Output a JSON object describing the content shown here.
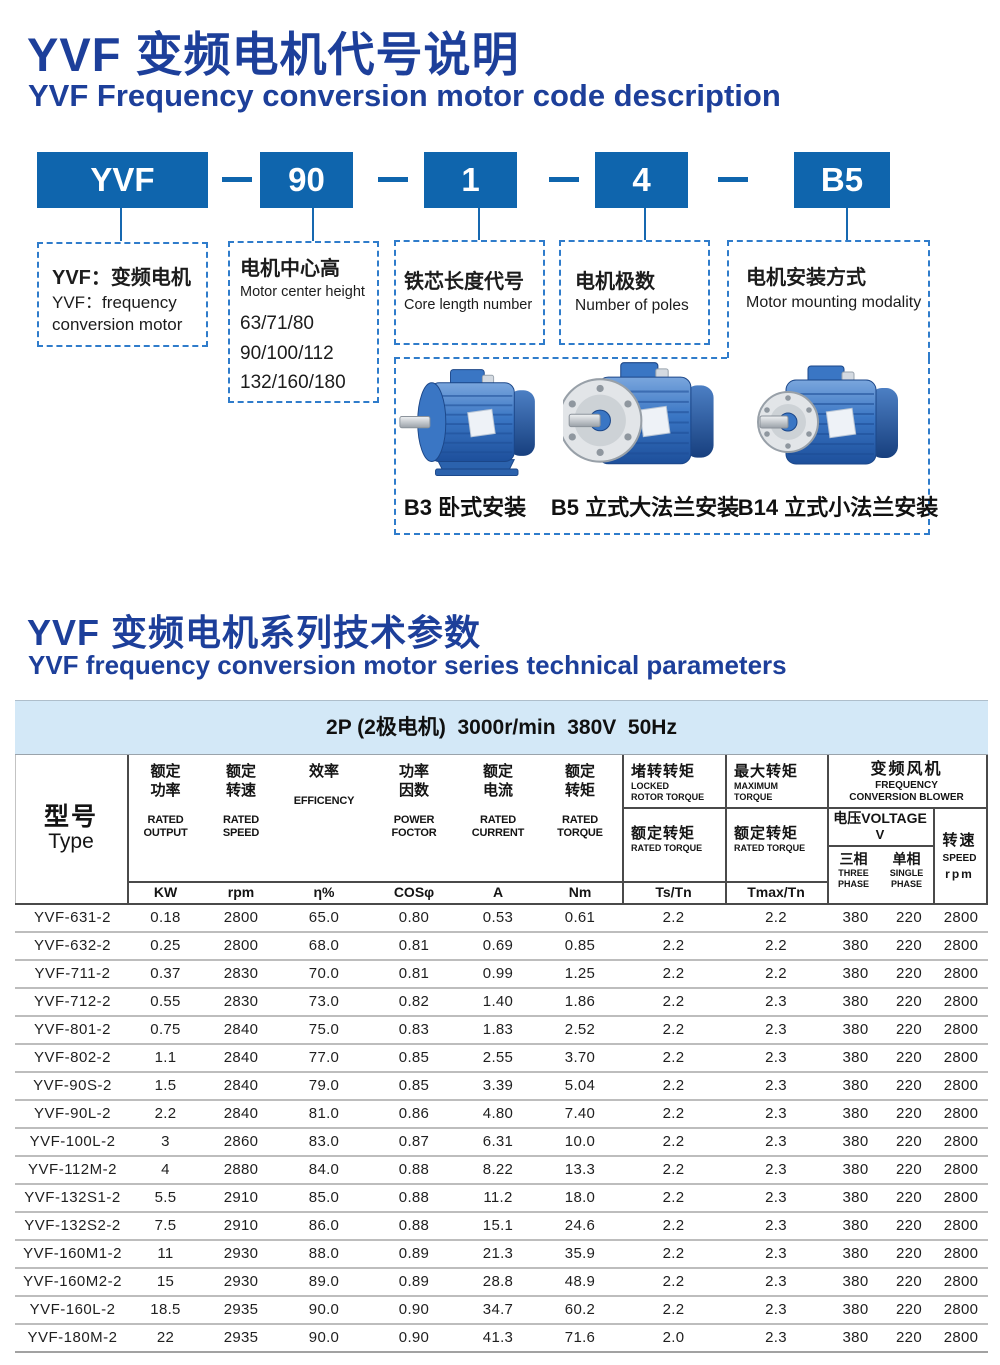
{
  "page": {
    "title_cn": "YVF 变频电机代号说明",
    "title_en": "YVF Frequency conversion motor code description"
  },
  "code_diagram": {
    "boxes": [
      {
        "label": "YVF"
      },
      {
        "label": "90"
      },
      {
        "label": "1"
      },
      {
        "label": "4"
      },
      {
        "label": "B5"
      }
    ],
    "descriptions": [
      {
        "cn": "YVF：变频电机",
        "en_lines": [
          "YVF：frequency",
          "conversion motor"
        ]
      },
      {
        "cn": "电机中心高",
        "en": "Motor center height",
        "values": [
          "63/71/80",
          "90/100/112",
          "132/160/180"
        ]
      },
      {
        "cn": "铁芯长度代号",
        "en": "Core length number"
      },
      {
        "cn": "电机极数",
        "en": "Number of poles"
      },
      {
        "cn": "电机安装方式",
        "en": "Motor mounting modality"
      }
    ],
    "mountings": [
      {
        "label": "B3 卧式安装"
      },
      {
        "label": "B5 立式大法兰安装"
      },
      {
        "label": "B14 立式小法兰安装"
      }
    ]
  },
  "section": {
    "title_cn": "YVF 变频电机系列技术参数",
    "title_en": "YVF frequency conversion motor series technical parameters"
  },
  "table": {
    "banner": "2P (2极电机)  3000r/min  380V  50Hz",
    "header": {
      "type_cn": "型号",
      "type_en": "Type",
      "cols": [
        {
          "cn": [
            "额定",
            "功率"
          ],
          "en": [
            "RATED",
            "OUTPUT"
          ],
          "unit": "KW"
        },
        {
          "cn": [
            "额定",
            "转速"
          ],
          "en": [
            "RATED",
            "SPEED"
          ],
          "unit": "rpm"
        },
        {
          "cn": [
            "效率"
          ],
          "en": [
            "EFFICENCY"
          ],
          "unit": "η%"
        },
        {
          "cn": [
            "功率",
            "因数"
          ],
          "en": [
            "POWER",
            "FOCTOR"
          ],
          "unit": "COSφ"
        },
        {
          "cn": [
            "额定",
            "电流"
          ],
          "en": [
            "RATED",
            "CURRENT"
          ],
          "unit": "A"
        },
        {
          "cn": [
            "额定",
            "转矩"
          ],
          "en": [
            "RATED",
            "TORQUE"
          ],
          "unit": "Nm"
        }
      ],
      "locked": {
        "cn": "堵转转矩",
        "en": [
          "LOCKED",
          "ROTOR TORQUE"
        ],
        "sub_cn": "额定转矩",
        "sub_en": "RATED TORQUE",
        "unit": "Ts/Tn"
      },
      "max": {
        "cn": "最大转矩",
        "en": [
          "MAXIMUM",
          "TORQUE"
        ],
        "sub_cn": "额定转矩",
        "sub_en": "RATED TORQUE",
        "unit": "Tmax/Tn"
      },
      "blower": {
        "cn": "变频风机",
        "en": [
          "FREQUENCY",
          "CONVERSION BLOWER"
        ],
        "voltage": "电压VOLTAGE",
        "voltage_unit": "V",
        "three": [
          "三相",
          "THREE",
          "PHASE"
        ],
        "single": [
          "单相",
          "SINGLE",
          "PHASE"
        ],
        "speed": [
          "转速",
          "SPEED",
          "rpm"
        ]
      }
    },
    "rows": [
      [
        "YVF-631-2",
        "0.18",
        "2800",
        "65.0",
        "0.80",
        "0.53",
        "0.61",
        "2.2",
        "2.2",
        "380",
        "220",
        "2800"
      ],
      [
        "YVF-632-2",
        "0.25",
        "2800",
        "68.0",
        "0.81",
        "0.69",
        "0.85",
        "2.2",
        "2.2",
        "380",
        "220",
        "2800"
      ],
      [
        "YVF-711-2",
        "0.37",
        "2830",
        "70.0",
        "0.81",
        "0.99",
        "1.25",
        "2.2",
        "2.2",
        "380",
        "220",
        "2800"
      ],
      [
        "YVF-712-2",
        "0.55",
        "2830",
        "73.0",
        "0.82",
        "1.40",
        "1.86",
        "2.2",
        "2.3",
        "380",
        "220",
        "2800"
      ],
      [
        "YVF-801-2",
        "0.75",
        "2840",
        "75.0",
        "0.83",
        "1.83",
        "2.52",
        "2.2",
        "2.3",
        "380",
        "220",
        "2800"
      ],
      [
        "YVF-802-2",
        "1.1",
        "2840",
        "77.0",
        "0.85",
        "2.55",
        "3.70",
        "2.2",
        "2.3",
        "380",
        "220",
        "2800"
      ],
      [
        "YVF-90S-2",
        "1.5",
        "2840",
        "79.0",
        "0.85",
        "3.39",
        "5.04",
        "2.2",
        "2.3",
        "380",
        "220",
        "2800"
      ],
      [
        "YVF-90L-2",
        "2.2",
        "2840",
        "81.0",
        "0.86",
        "4.80",
        "7.40",
        "2.2",
        "2.3",
        "380",
        "220",
        "2800"
      ],
      [
        "YVF-100L-2",
        "3",
        "2860",
        "83.0",
        "0.87",
        "6.31",
        "10.0",
        "2.2",
        "2.3",
        "380",
        "220",
        "2800"
      ],
      [
        "YVF-112M-2",
        "4",
        "2880",
        "84.0",
        "0.88",
        "8.22",
        "13.3",
        "2.2",
        "2.3",
        "380",
        "220",
        "2800"
      ],
      [
        "YVF-132S1-2",
        "5.5",
        "2910",
        "85.0",
        "0.88",
        "11.2",
        "18.0",
        "2.2",
        "2.3",
        "380",
        "220",
        "2800"
      ],
      [
        "YVF-132S2-2",
        "7.5",
        "2910",
        "86.0",
        "0.88",
        "15.1",
        "24.6",
        "2.2",
        "2.3",
        "380",
        "220",
        "2800"
      ],
      [
        "YVF-160M1-2",
        "11",
        "2930",
        "88.0",
        "0.89",
        "21.3",
        "35.9",
        "2.2",
        "2.3",
        "380",
        "220",
        "2800"
      ],
      [
        "YVF-160M2-2",
        "15",
        "2930",
        "89.0",
        "0.89",
        "28.8",
        "48.9",
        "2.2",
        "2.3",
        "380",
        "220",
        "2800"
      ],
      [
        "YVF-160L-2",
        "18.5",
        "2935",
        "90.0",
        "0.90",
        "34.7",
        "60.2",
        "2.2",
        "2.3",
        "380",
        "220",
        "2800"
      ],
      [
        "YVF-180M-2",
        "22",
        "2935",
        "90.0",
        "0.90",
        "41.3",
        "71.6",
        "2.0",
        "2.3",
        "380",
        "220",
        "2800"
      ]
    ]
  },
  "colors": {
    "accent_blue": "#0f65ad",
    "title_blue": "#1d3f9a",
    "dashed_border": "#2f7ccb",
    "banner_bg": "#d3e8f7"
  }
}
